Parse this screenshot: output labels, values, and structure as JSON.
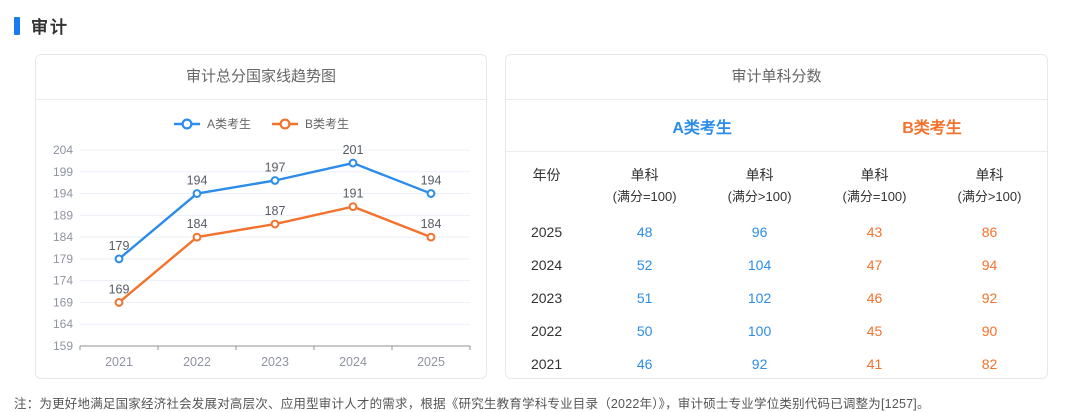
{
  "section": {
    "title": "审计"
  },
  "chart_panel": {
    "title": "审计总分国家线趋势图"
  },
  "chart_data": {
    "type": "line",
    "title": "审计总分国家线趋势图",
    "categories": [
      "2021",
      "2022",
      "2023",
      "2024",
      "2025"
    ],
    "series": [
      {
        "name": "A类考生",
        "color": "#2b8ce9",
        "values": [
          179,
          194,
          197,
          201,
          194
        ]
      },
      {
        "name": "B类考生",
        "color": "#f3722c",
        "values": [
          169,
          184,
          187,
          191,
          184
        ]
      }
    ],
    "ylim": [
      159,
      204
    ],
    "yticks": [
      204,
      199,
      194,
      189,
      184,
      179,
      174,
      169,
      164,
      159
    ],
    "grid": true,
    "legend_position": "top",
    "data_labels": true
  },
  "table_panel": {
    "title": "审计单科分数",
    "groups": [
      {
        "label": "A类考生",
        "color": "#2b8ce9"
      },
      {
        "label": "B类考生",
        "color": "#f3722c"
      }
    ],
    "columns": [
      {
        "label": "年份",
        "sub": ""
      },
      {
        "label": "单科",
        "sub": "(满分=100)",
        "group": 0
      },
      {
        "label": "单科",
        "sub": "(满分>100)",
        "group": 0
      },
      {
        "label": "单科",
        "sub": "(满分=100)",
        "group": 1
      },
      {
        "label": "单科",
        "sub": "(满分>100)",
        "group": 1
      }
    ],
    "rows": [
      {
        "year": "2025",
        "values": [
          48,
          96,
          43,
          86
        ]
      },
      {
        "year": "2024",
        "values": [
          52,
          104,
          47,
          94
        ]
      },
      {
        "year": "2023",
        "values": [
          51,
          102,
          46,
          92
        ]
      },
      {
        "year": "2022",
        "values": [
          50,
          100,
          45,
          90
        ]
      },
      {
        "year": "2021",
        "values": [
          46,
          92,
          41,
          82
        ]
      }
    ]
  },
  "note": "注：为更好地满足国家经济社会发展对高层次、应用型审计人才的需求，根据《研究生教育学科专业目录（2022年）》，审计硕士专业学位类别代码已调整为[1257]。",
  "colors": {
    "accent_blue": "#2b8ce9",
    "accent_orange": "#f3722c",
    "axis_text": "#8f94a0",
    "grid_line": "#ebeff7",
    "axis_line": "#909090",
    "data_label": "#565b64"
  }
}
